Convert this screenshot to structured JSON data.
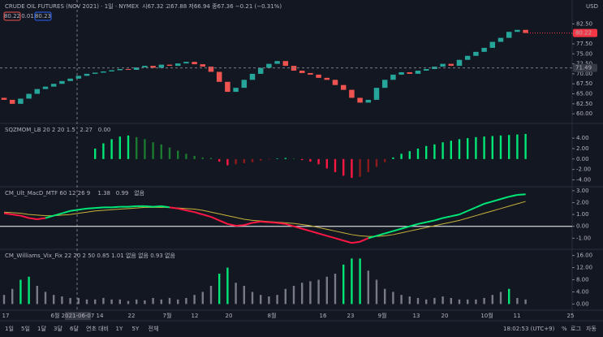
{
  "header": {
    "title": "CRUDE OIL FUTURES (NOV 2021) · 1일 · NYMEX",
    "ohlc": "시67.32 고67.88 저66.94 종67.36 −0.21 (−0.31%)",
    "sell": "80.22",
    "spread": "0.01",
    "buy": "80.23",
    "currency": "USD"
  },
  "chart_data": [
    {
      "type": "candlestick",
      "up_color": "#26a69a",
      "down_color": "#ef5350",
      "open": [
        64,
        63.5,
        62.5,
        63.8,
        65,
        66.2,
        66.8,
        67.5,
        68.2,
        68.8,
        69.5,
        70.0,
        70.3,
        70.6,
        70.9,
        71.2,
        71.0,
        71.6,
        72.0,
        71.5,
        72.3,
        72.0,
        72.6,
        73.0,
        72.4,
        71.8,
        70.5,
        68.0,
        65.5,
        66.5,
        68.5,
        70.0,
        71.5,
        72.5,
        73.2,
        72.0,
        70.8,
        70.2,
        69.8,
        69.0,
        68.5,
        67.2,
        66.0,
        64.0,
        62.8,
        63.5,
        66.5,
        68.5,
        69.8,
        70.4,
        70.0,
        70.8,
        71.2,
        71.8,
        72.5,
        72.0,
        73.5,
        74.5,
        75.5,
        76.5,
        78.0,
        79.0,
        80.5,
        81.0
      ],
      "close": [
        63.5,
        62.5,
        63.8,
        65,
        66.2,
        66.8,
        67.5,
        68.2,
        68.8,
        69.5,
        70.0,
        70.3,
        70.6,
        70.9,
        71.2,
        71.0,
        71.6,
        72.0,
        71.5,
        72.3,
        72.0,
        72.6,
        73.0,
        72.4,
        71.8,
        70.5,
        68.0,
        65.5,
        66.5,
        68.5,
        70.0,
        71.5,
        72.5,
        73.2,
        72.0,
        70.8,
        70.2,
        69.8,
        69.0,
        68.5,
        67.2,
        66.0,
        64.0,
        62.8,
        63.5,
        66.5,
        68.5,
        69.8,
        70.4,
        70.0,
        70.8,
        71.2,
        71.8,
        72.5,
        72.0,
        73.5,
        74.5,
        75.5,
        76.5,
        78.0,
        79.0,
        80.5,
        81.0,
        80.22
      ],
      "ylim": [
        58,
        84
      ],
      "yticks": [
        {
          "value": 82.5,
          "label": "82.50"
        },
        {
          "value": 80,
          "label": "80.00"
        },
        {
          "value": 77.5,
          "label": "77.50"
        },
        {
          "value": 75,
          "label": "75.00"
        },
        {
          "value": 72.5,
          "label": "72.50"
        },
        {
          "value": 70,
          "label": "70.00"
        },
        {
          "value": 67.5,
          "label": "67.50"
        },
        {
          "value": 65,
          "label": "65.00"
        },
        {
          "value": 62.5,
          "label": "62.50"
        },
        {
          "value": 60,
          "label": "60.00"
        }
      ],
      "price_labels": [
        {
          "value": 80.22,
          "label": "80.22",
          "color": "#f23645"
        },
        {
          "value": 71.49,
          "label": "71.49",
          "color": "#363a45"
        }
      ]
    },
    {
      "type": "squeeze",
      "title": "SQZMOM_LB 20 2 20 1.5",
      "readouts": [
        "2.27",
        "0.00"
      ],
      "colors": {
        "up_rising": "#00e676",
        "up_falling": "#1b7a2f",
        "down_falling": "#ff1744",
        "down_rising": "#8b1a1a"
      },
      "values": [
        null,
        null,
        null,
        null,
        null,
        null,
        null,
        null,
        null,
        null,
        null,
        2.0,
        3.0,
        3.8,
        4.3,
        4.5,
        4.2,
        3.8,
        3.2,
        2.8,
        2.2,
        1.6,
        1.0,
        0.6,
        0.3,
        0.2,
        -0.5,
        -1.2,
        -1.0,
        -0.8,
        -0.6,
        -0.3,
        -0.1,
        0.1,
        0.2,
        0.1,
        -0.2,
        -0.5,
        -1.0,
        -1.8,
        -2.5,
        -3.2,
        -3.6,
        -3.4,
        -2.5,
        -1.5,
        -0.6,
        0.3,
        1.0,
        1.5,
        2.0,
        2.5,
        2.8,
        3.2,
        3.5,
        3.8,
        4.0,
        4.2,
        4.3,
        4.4,
        4.5,
        4.6,
        4.7,
        4.8
      ],
      "ylim": [
        -5,
        6.5
      ],
      "yticks": [
        {
          "value": 4,
          "label": "4.00"
        },
        {
          "value": 2,
          "label": "2.00"
        },
        {
          "value": 0,
          "label": "0.00"
        },
        {
          "value": -2,
          "label": "-2.00"
        },
        {
          "value": -4,
          "label": "-4.00"
        }
      ]
    },
    {
      "type": "macd",
      "title": "CM_Ult_MacD_MTF 60 12 26 9",
      "readouts": [
        "1.38",
        "0.99",
        "없음"
      ],
      "macd": {
        "up_color": "#00e676",
        "down_color": "#ff1744",
        "values": [
          1.1,
          1.0,
          0.9,
          0.7,
          0.6,
          0.7,
          0.9,
          1.1,
          1.3,
          1.4,
          1.5,
          1.55,
          1.6,
          1.6,
          1.65,
          1.65,
          1.7,
          1.7,
          1.65,
          1.7,
          1.6,
          1.5,
          1.35,
          1.2,
          1.0,
          0.8,
          0.5,
          0.2,
          0.05,
          0.1,
          0.3,
          0.4,
          0.35,
          0.3,
          0.2,
          0.0,
          -0.2,
          -0.4,
          -0.6,
          -0.8,
          -1.0,
          -1.2,
          -1.4,
          -1.3,
          -1.0,
          -0.8,
          -0.6,
          -0.4,
          -0.2,
          0.0,
          0.2,
          0.35,
          0.5,
          0.7,
          0.85,
          1.0,
          1.3,
          1.6,
          1.9,
          2.1,
          2.3,
          2.5,
          2.65,
          2.7
        ]
      },
      "signal": {
        "color": "#c9b33a",
        "values": [
          1.2,
          1.15,
          1.1,
          1.0,
          0.95,
          0.9,
          0.9,
          0.95,
          1.0,
          1.1,
          1.2,
          1.3,
          1.35,
          1.4,
          1.45,
          1.5,
          1.55,
          1.6,
          1.6,
          1.6,
          1.6,
          1.55,
          1.5,
          1.45,
          1.35,
          1.2,
          1.05,
          0.9,
          0.75,
          0.6,
          0.5,
          0.45,
          0.4,
          0.35,
          0.3,
          0.25,
          0.15,
          0.05,
          -0.1,
          -0.25,
          -0.4,
          -0.55,
          -0.7,
          -0.8,
          -0.85,
          -0.85,
          -0.8,
          -0.7,
          -0.55,
          -0.4,
          -0.25,
          -0.1,
          0.05,
          0.2,
          0.35,
          0.5,
          0.7,
          0.9,
          1.1,
          1.3,
          1.5,
          1.7,
          1.9,
          2.1
        ]
      },
      "ylim": [
        -1.8,
        3.2
      ],
      "yticks": [
        {
          "value": 3,
          "label": "3.00"
        },
        {
          "value": 2,
          "label": "2.00"
        },
        {
          "value": 1,
          "label": "1.00"
        },
        {
          "value": 0,
          "label": "0.00"
        },
        {
          "value": -1,
          "label": "-1.00"
        }
      ]
    },
    {
      "type": "bar",
      "title": "CM_Williams_Vix_Fix 22 20 2 50 0.85 1.01 없음 없음 0.93 없음",
      "series": [
        {
          "color": "#787b86",
          "values": [
            3,
            5,
            null,
            null,
            6,
            4,
            3,
            2.5,
            2,
            2,
            1.5,
            1.5,
            2,
            1.5,
            1.5,
            1,
            1.5,
            1.2,
            2,
            1.5,
            2,
            1.5,
            2,
            3,
            4,
            6,
            null,
            null,
            7,
            6,
            4,
            3,
            2.5,
            3,
            5,
            6,
            7,
            7.5,
            8,
            9,
            10,
            null,
            null,
            null,
            11,
            8,
            5,
            4,
            3,
            2.5,
            2,
            1.5,
            2,
            2.5,
            2,
            1.5,
            1.5,
            1.5,
            2,
            3,
            4,
            null,
            2,
            1.5
          ]
        },
        {
          "color": "#00e676",
          "values": [
            null,
            null,
            8,
            9,
            null,
            null,
            null,
            null,
            null,
            null,
            null,
            null,
            null,
            null,
            null,
            null,
            null,
            null,
            null,
            null,
            null,
            null,
            null,
            null,
            null,
            null,
            10,
            12,
            null,
            null,
            null,
            null,
            null,
            null,
            null,
            null,
            null,
            null,
            null,
            null,
            null,
            13,
            15,
            15,
            null,
            null,
            null,
            null,
            null,
            null,
            null,
            null,
            null,
            null,
            null,
            null,
            null,
            null,
            null,
            null,
            null,
            5,
            null,
            null
          ]
        }
      ],
      "ylim": [
        -1.5,
        17.5
      ],
      "yticks": [
        {
          "value": 16,
          "label": "16.00"
        },
        {
          "value": 12,
          "label": "12.00"
        },
        {
          "value": 8,
          "label": "8.00"
        },
        {
          "value": 4,
          "label": "4.00"
        },
        {
          "value": 0,
          "label": "0.00"
        }
      ]
    }
  ],
  "x_axis": {
    "labels": [
      "17",
      "6월",
      "14",
      "22",
      "7월",
      "12",
      "20",
      "8월",
      "16",
      "23",
      "9월",
      "13",
      "20",
      "10월",
      "11",
      "25"
    ],
    "crosshair_label": "2021-06-07"
  },
  "toolbar": {
    "ranges": [
      "1일",
      "5일",
      "1달",
      "3달",
      "6달",
      "연초 대비",
      "1Y",
      "5Y",
      "전체"
    ],
    "time": "18:02:53 (UTC+9)",
    "percent": "%",
    "log": "로그",
    "auto": "자동"
  }
}
